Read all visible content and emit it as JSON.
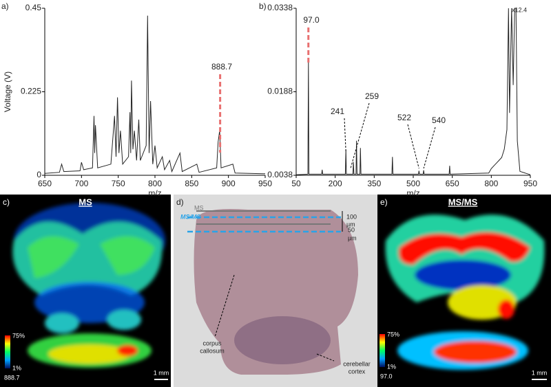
{
  "chart_data": [
    {
      "type": "line",
      "panel_label": "a)",
      "x_label": "m/z",
      "y_label": "Voltage (V)",
      "x": [
        650,
        670,
        673,
        676,
        698,
        700,
        703,
        715,
        717,
        718,
        719,
        722,
        740,
        745,
        747,
        749,
        751,
        753,
        756,
        764,
        766,
        767,
        768,
        770,
        772,
        775,
        778,
        780,
        788,
        790,
        792,
        794,
        797,
        800,
        803,
        810,
        813,
        820,
        823,
        834,
        837,
        857,
        860,
        884,
        886,
        888,
        890,
        906,
        909,
        950
      ],
      "values": [
        0.005,
        0.008,
        0.03,
        0.01,
        0.012,
        0.035,
        0.015,
        0.02,
        0.16,
        0.06,
        0.135,
        0.02,
        0.03,
        0.16,
        0.05,
        0.21,
        0.06,
        0.12,
        0.03,
        0.05,
        0.17,
        0.06,
        0.255,
        0.07,
        0.12,
        0.04,
        0.15,
        0.04,
        0.08,
        0.43,
        0.06,
        0.2,
        0.03,
        0.08,
        0.02,
        0.05,
        0.015,
        0.04,
        0.01,
        0.06,
        0.01,
        0.03,
        0.008,
        0.02,
        0.09,
        0.12,
        0.02,
        0.03,
        0.006,
        0.004
      ],
      "color": "#222222",
      "xlim": [
        650,
        950
      ],
      "xticks": [
        650,
        700,
        750,
        800,
        850,
        900,
        950
      ],
      "ylim": [
        0,
        0.45
      ],
      "yticks": [
        0,
        0.225,
        0.45
      ],
      "annotations": [
        "888.7"
      ]
    },
    {
      "type": "line",
      "panel_label": "b)",
      "x_label": "m/z",
      "x": [
        50,
        95,
        97,
        99,
        148,
        150,
        152,
        239,
        241,
        243,
        268,
        270,
        272,
        280,
        282,
        284,
        295,
        297,
        299,
        418,
        420,
        422,
        520,
        522,
        524,
        538,
        540,
        542,
        638,
        640,
        642,
        790,
        800,
        810,
        820,
        830,
        840,
        850,
        860,
        866,
        870,
        878,
        884,
        890,
        895,
        900,
        910,
        950
      ],
      "values": [
        0.0039,
        0.004,
        0.0244,
        0.004,
        0.004,
        0.0048,
        0.004,
        0.004,
        0.0084,
        0.004,
        0.004,
        0.0062,
        0.004,
        0.004,
        0.01,
        0.004,
        0.004,
        0.0087,
        0.004,
        0.004,
        0.0071,
        0.004,
        0.004,
        0.0046,
        0.004,
        0.004,
        0.0047,
        0.004,
        0.004,
        0.0055,
        0.004,
        0.0042,
        0.005,
        0.0055,
        0.006,
        0.0065,
        0.007,
        0.0085,
        0.012,
        0.0338,
        0.015,
        0.0338,
        0.02,
        0.0338,
        0.0338,
        0.01,
        0.0045,
        0.0039
      ],
      "color": "#222222",
      "xlim": [
        50,
        950
      ],
      "xticks": [
        50,
        200,
        350,
        500,
        650,
        800,
        950
      ],
      "ylim": [
        0.0038,
        0.0338
      ],
      "yticks": [
        0.0038,
        0.0188,
        0.0338
      ],
      "annotations": [
        "97.0",
        "241",
        "259",
        "522",
        "540",
        "x12.4"
      ]
    }
  ],
  "panel_c": {
    "label": "c)",
    "title": "MS",
    "scale_max": "75%",
    "scale_min": "1%",
    "mz": "888.7",
    "scale_bar": "1 mm"
  },
  "panel_d": {
    "label": "d)",
    "line_ms": "MS",
    "line_msms": "MS/MS",
    "gap1": "100",
    "gap1_unit": "µm",
    "gap2": "50",
    "gap2_unit": "µm",
    "region1a": "corpus",
    "region1b": "callosum",
    "region2a": "cerebellar",
    "region2b": "cortex"
  },
  "panel_e": {
    "label": "e)",
    "title": "MS/MS",
    "scale_max": "75%",
    "scale_min": "1%",
    "mz": "97.0",
    "scale_bar": "1 mm"
  }
}
